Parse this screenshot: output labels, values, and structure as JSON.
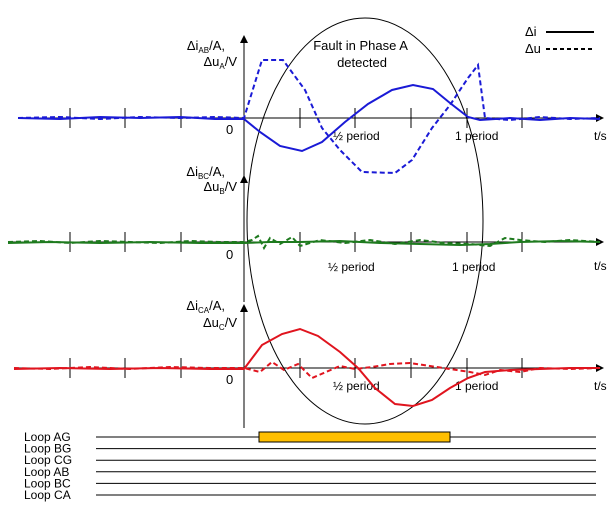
{
  "legend": {
    "current": "Δi",
    "voltage": "Δu"
  },
  "annotation": "Fault in Phase A\ndetected",
  "time_axis_label": "t/s",
  "origin_label": "0",
  "half_period_label": "½ period",
  "one_period_label": "1 period",
  "panels": [
    {
      "id": "AB",
      "ylabel_line1": "Δi",
      "ylabel_sub1": "AB",
      "ylabel_suffix1": "/A,",
      "ylabel_line2": "Δu",
      "ylabel_sub2": "A",
      "ylabel_suffix2": "/V",
      "color": "#1a1ad6"
    },
    {
      "id": "BC",
      "ylabel_line1": "Δi",
      "ylabel_sub1": "BC",
      "ylabel_suffix1": "/A,",
      "ylabel_line2": "Δu",
      "ylabel_sub2": "B",
      "ylabel_suffix2": "/V",
      "color": "#1e7a1e"
    },
    {
      "id": "CA",
      "ylabel_line1": "Δi",
      "ylabel_sub1": "CA",
      "ylabel_suffix1": "/A,",
      "ylabel_line2": "Δu",
      "ylabel_sub2": "C",
      "ylabel_suffix2": "/V",
      "color": "#e0141e"
    }
  ],
  "loops": [
    {
      "label": "Loop AG",
      "active": true
    },
    {
      "label": "Loop BG",
      "active": false
    },
    {
      "label": "Loop CG",
      "active": false
    },
    {
      "label": "Loop AB",
      "active": false
    },
    {
      "label": "Loop BC",
      "active": false
    },
    {
      "label": "Loop CA",
      "active": false
    }
  ],
  "loop_bar_color": "#ffbf00"
}
